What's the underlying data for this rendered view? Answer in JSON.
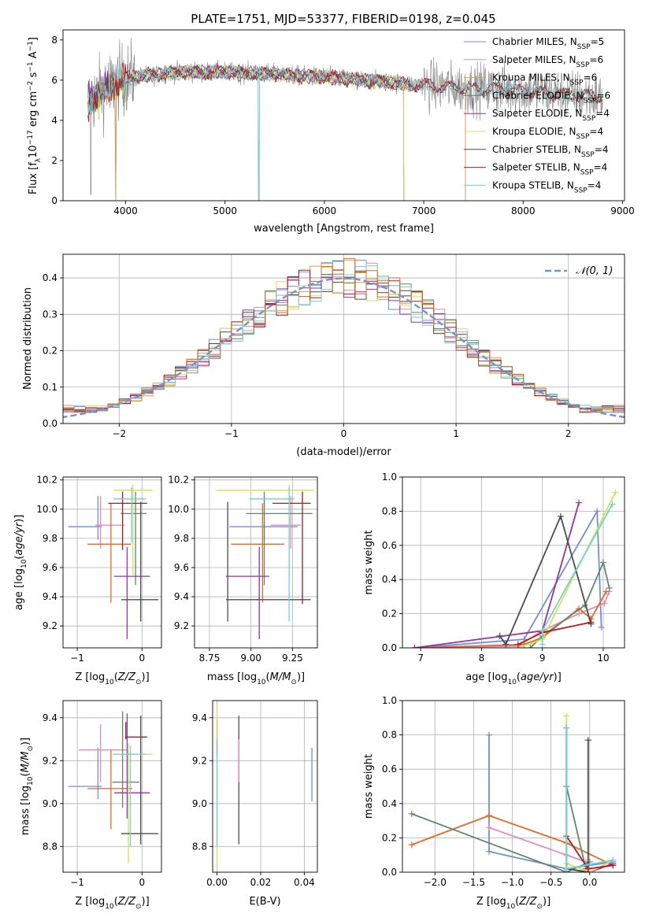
{
  "figure_title": "PLATE=1751, MJD=53377, FIBERID=0198, z=0.045",
  "colors": {
    "Chabrier MILES": "#6f8fd8",
    "Salpeter MILES": "#e98ab4",
    "Kroupa MILES": "#d2a24a",
    "Chabrier ELODIE": "#5f8a67",
    "Salpeter ELODIE": "#9a2db0",
    "Kroupa ELODIE": "#d9e052",
    "Chabrier STELIB": "#4c4c4c",
    "Salpeter STELIB": "#b11b1b",
    "Kroupa STELIB": "#6fd1d8",
    "orange": "#e46a24",
    "data": "#808080",
    "normal": "#6e94dc"
  },
  "chart_data": [
    {
      "type": "line",
      "title": "PLATE=1751, MJD=53377, FIBERID=0198, z=0.045",
      "xlabel": "wavelength [Angstrom, rest frame]",
      "ylabel": "Flux [fλ10⁻¹⁷ erg cm⁻² s⁻¹ A⁻¹]",
      "xlim": [
        3370,
        9020
      ],
      "ylim": [
        0,
        8.5
      ],
      "xticks": [
        4000,
        5000,
        6000,
        7000,
        8000,
        9000
      ],
      "yticks": [
        0,
        2,
        4,
        6,
        8
      ],
      "legend_position": "top-right",
      "legend": [
        {
          "label": "Chabrier MILES, N",
          "sub": "SSP",
          "suffix": "=5"
        },
        {
          "label": "Salpeter MILES, N",
          "sub": "SSP",
          "suffix": "=6"
        },
        {
          "label": "Kroupa MILES, N",
          "sub": "SSP",
          "suffix": "=6"
        },
        {
          "label": "Chabrier ELODIE, N",
          "sub": "SSP",
          "suffix": "=6"
        },
        {
          "label": "Salpeter ELODIE, N",
          "sub": "SSP",
          "suffix": "=4"
        },
        {
          "label": "Kroupa ELODIE, N",
          "sub": "SSP",
          "suffix": "=4"
        },
        {
          "label": "Chabrier STELIB, N",
          "sub": "SSP",
          "suffix": "=4"
        },
        {
          "label": "Salpeter STELIB, N",
          "sub": "SSP",
          "suffix": "=4"
        },
        {
          "label": "Kroupa STELIB, N",
          "sub": "SSP",
          "suffix": "=4"
        }
      ],
      "continuum": [
        [
          3620,
          4.9
        ],
        [
          3800,
          5.6
        ],
        [
          4000,
          6.1
        ],
        [
          4500,
          6.4
        ],
        [
          5000,
          6.4
        ],
        [
          5500,
          6.3
        ],
        [
          6000,
          6.15
        ],
        [
          6500,
          5.95
        ],
        [
          7000,
          5.75
        ],
        [
          7400,
          5.6
        ],
        [
          7800,
          5.55
        ],
        [
          8300,
          5.35
        ],
        [
          8800,
          5.15
        ]
      ],
      "model_ranges": {
        "Chabrier MILES": [
          3620,
          7420
        ],
        "Salpeter MILES": [
          3620,
          7420
        ],
        "Kroupa MILES": [
          3620,
          7420
        ],
        "Chabrier ELODIE": [
          3620,
          6800
        ],
        "Salpeter ELODIE": [
          3620,
          6800
        ],
        "Kroupa ELODIE": [
          3620,
          6800
        ],
        "Chabrier STELIB": [
          3620,
          8800
        ],
        "Salpeter STELIB": [
          3620,
          8800
        ],
        "Kroupa STELIB": [
          3620,
          8800
        ]
      }
    },
    {
      "type": "histogram",
      "xlabel": "(data-model)/error",
      "ylabel": "Normed distribution",
      "xlim": [
        -2.5,
        2.5
      ],
      "ylim": [
        0,
        0.465
      ],
      "xticks": [
        -2,
        -1,
        0,
        1,
        2
      ],
      "yticks": [
        0.0,
        0.1,
        0.2,
        0.3,
        0.4
      ],
      "legend": "𝒩(0, 1)",
      "bin_width": 0.1,
      "reference_curve": "normal pdf, mean 0, sigma 1"
    },
    {
      "type": "errorbar",
      "xlabel": "Z [log₁₀(Z/Z⊙)]",
      "ylabel": "age  [log₁₀(age/yr)]",
      "xlim": [
        -1.22,
        0.3
      ],
      "ylim": [
        9.05,
        10.22
      ],
      "xticks": [
        -1,
        0
      ],
      "yticks": [
        9.2,
        9.4,
        9.6,
        9.8,
        10.0,
        10.2
      ],
      "points": [
        {
          "model": "Chabrier MILES",
          "x": -0.68,
          "xlo": -1.14,
          "xhi": -0.62,
          "y": 9.88,
          "ylo": 9.79,
          "yhi": 10.09
        },
        {
          "model": "Salpeter MILES",
          "x": -0.64,
          "xlo": -0.72,
          "xhi": -0.27,
          "y": 9.89,
          "ylo": 9.73,
          "yhi": 10.09
        },
        {
          "model": "orange",
          "x": -0.48,
          "xlo": -0.84,
          "xhi": -0.17,
          "y": 9.76,
          "ylo": 9.36,
          "yhi": 10.04
        },
        {
          "model": "Chabrier ELODIE",
          "x": -0.1,
          "xlo": -0.33,
          "xhi": 0.07,
          "y": 9.97,
          "ylo": 9.48,
          "yhi": 10.12
        },
        {
          "model": "Salpeter ELODIE",
          "x": -0.23,
          "xlo": -0.43,
          "xhi": 0.12,
          "y": 9.54,
          "ylo": 9.11,
          "yhi": 9.74
        },
        {
          "model": "Kroupa ELODIE",
          "x": -0.14,
          "xlo": -0.43,
          "xhi": 0.16,
          "y": 10.13,
          "ylo": 9.54,
          "yhi": 10.17
        },
        {
          "model": "Chabrier STELIB",
          "x": -0.02,
          "xlo": -0.32,
          "xhi": 0.25,
          "y": 9.38,
          "ylo": 9.23,
          "yhi": 10.05
        },
        {
          "model": "Salpeter STELIB",
          "x": -0.3,
          "xlo": -0.52,
          "xhi": 0.08,
          "y": 10.04,
          "ylo": 9.72,
          "yhi": 10.12
        },
        {
          "model": "Kroupa STELIB",
          "x": -0.16,
          "xlo": -0.44,
          "xhi": 0.06,
          "y": 10.07,
          "ylo": 9.77,
          "yhi": 10.15
        }
      ]
    },
    {
      "type": "errorbar",
      "xlabel": "mass [log₁₀(M/M⊙)]",
      "ylabel": "",
      "xlim": [
        8.66,
        9.4
      ],
      "ylim": [
        9.05,
        10.22
      ],
      "xticks": [
        8.75,
        9.0,
        9.25
      ],
      "yticks": [
        9.2,
        9.4,
        9.6,
        9.8,
        10.0,
        10.2
      ],
      "points": [
        {
          "model": "Chabrier MILES",
          "x": 9.08,
          "xlo": 8.87,
          "xhi": 9.28,
          "y": 9.88,
          "ylo": 9.79,
          "yhi": 10.09
        },
        {
          "model": "Salpeter MILES",
          "x": 9.24,
          "xlo": 9.12,
          "xhi": 9.3,
          "y": 9.89,
          "ylo": 9.73,
          "yhi": 10.09
        },
        {
          "model": "orange",
          "x": 9.07,
          "xlo": 8.88,
          "xhi": 9.2,
          "y": 9.76,
          "ylo": 9.36,
          "yhi": 10.04
        },
        {
          "model": "Chabrier ELODIE",
          "x": 9.08,
          "xlo": 8.97,
          "xhi": 9.37,
          "y": 9.97,
          "ylo": 9.48,
          "yhi": 10.12
        },
        {
          "model": "Salpeter ELODIE",
          "x": 9.05,
          "xlo": 8.85,
          "xhi": 9.11,
          "y": 9.54,
          "ylo": 9.11,
          "yhi": 9.74
        },
        {
          "model": "Kroupa ELODIE",
          "x": 9.23,
          "xlo": 8.79,
          "xhi": 9.38,
          "y": 10.13,
          "ylo": 9.54,
          "yhi": 10.17
        },
        {
          "model": "Chabrier STELIB",
          "x": 8.86,
          "xlo": 8.85,
          "xhi": 9.36,
          "y": 9.38,
          "ylo": 9.23,
          "yhi": 10.05
        },
        {
          "model": "Salpeter STELIB",
          "x": 9.31,
          "xlo": 9.13,
          "xhi": 9.36,
          "y": 10.04,
          "ylo": 9.35,
          "yhi": 10.12
        },
        {
          "model": "Kroupa STELIB",
          "x": 9.23,
          "xlo": 8.99,
          "xhi": 9.26,
          "y": 10.07,
          "ylo": 9.23,
          "yhi": 10.15
        }
      ]
    },
    {
      "type": "line",
      "xlabel": "age  [log₁₀(age/yr)]",
      "ylabel": "mass weight",
      "xlim": [
        6.7,
        10.35
      ],
      "ylim": [
        0,
        1.0
      ],
      "xticks": [
        7,
        8,
        9,
        10
      ],
      "yticks": [
        0.0,
        0.2,
        0.4,
        0.6,
        0.8,
        1.0
      ],
      "series": [
        {
          "model": "Chabrier MILES",
          "x": [
            6.9,
            8.7,
            9.9,
            9.97
          ],
          "y": [
            0.0,
            0.05,
            0.8,
            0.12
          ]
        },
        {
          "model": "Salpeter MILES",
          "x": [
            6.9,
            8.6,
            9.0,
            9.6,
            10.02,
            10.1
          ],
          "y": [
            0.0,
            0.01,
            0.1,
            0.2,
            0.26,
            0.33
          ]
        },
        {
          "model": "orange",
          "x": [
            6.9,
            8.7,
            9.0,
            9.6,
            9.8,
            10.05
          ],
          "y": [
            0.0,
            0.02,
            0.06,
            0.23,
            0.17,
            0.33
          ]
        },
        {
          "model": "Chabrier ELODIE",
          "x": [
            8.8,
            9.0,
            9.7,
            10.0,
            10.1
          ],
          "y": [
            0.0,
            0.07,
            0.25,
            0.5,
            0.35
          ]
        },
        {
          "model": "Salpeter ELODIE",
          "x": [
            6.9,
            9.0,
            9.6
          ],
          "y": [
            0.0,
            0.1,
            0.85
          ]
        },
        {
          "model": "Kroupa ELODIE",
          "x": [
            8.6,
            9.0,
            10.2
          ],
          "y": [
            0.0,
            0.05,
            0.91
          ]
        },
        {
          "model": "Chabrier STELIB",
          "x": [
            8.3,
            8.4,
            9.3,
            9.8
          ],
          "y": [
            0.07,
            0.02,
            0.77,
            0.14
          ]
        },
        {
          "model": "Salpeter STELIB",
          "x": [
            8.6,
            9.0,
            9.8
          ],
          "y": [
            0.02,
            0.09,
            0.15
          ]
        },
        {
          "model": "Kroupa STELIB",
          "x": [
            9.0,
            9.0,
            10.15
          ],
          "y": [
            0.02,
            0.1,
            0.84
          ]
        }
      ]
    },
    {
      "type": "errorbar",
      "xlabel": "Z [log₁₀(Z/Z⊙)]",
      "ylabel": "mass [log₁₀(M/M⊙)]",
      "xlim": [
        -1.22,
        0.3
      ],
      "ylim": [
        8.68,
        9.48
      ],
      "xticks": [
        -1,
        0
      ],
      "yticks": [
        8.8,
        9.0,
        9.2,
        9.4
      ],
      "points": [
        {
          "model": "Chabrier MILES",
          "x": -0.68,
          "xlo": -1.14,
          "xhi": -0.62,
          "y": 9.08,
          "ylo": 9.02,
          "yhi": 9.26
        },
        {
          "model": "Salpeter MILES",
          "x": -0.64,
          "xlo": -0.98,
          "xhi": -0.23,
          "y": 9.25,
          "ylo": 9.1,
          "yhi": 9.37
        },
        {
          "model": "orange",
          "x": -0.48,
          "xlo": -0.84,
          "xhi": -0.15,
          "y": 9.07,
          "ylo": 8.88,
          "yhi": 9.25
        },
        {
          "model": "Chabrier ELODIE",
          "x": -0.3,
          "xlo": -0.46,
          "xhi": -0.04,
          "y": 9.1,
          "ylo": 8.98,
          "yhi": 9.43
        },
        {
          "model": "Salpeter ELODIE",
          "x": -0.23,
          "xlo": -0.43,
          "xhi": 0.12,
          "y": 9.05,
          "ylo": 8.93,
          "yhi": 9.42
        },
        {
          "model": "Kroupa ELODIE",
          "x": -0.21,
          "xlo": -0.46,
          "xhi": 0.16,
          "y": 9.23,
          "ylo": 8.72,
          "yhi": 9.28
        },
        {
          "model": "Chabrier STELIB",
          "x": -0.02,
          "xlo": -0.32,
          "xhi": 0.25,
          "y": 8.86,
          "ylo": 8.81,
          "yhi": 9.41
        },
        {
          "model": "Salpeter STELIB",
          "x": -0.25,
          "xlo": -0.26,
          "xhi": 0.08,
          "y": 9.31,
          "ylo": 9.3,
          "yhi": 9.38
        },
        {
          "model": "Kroupa STELIB",
          "x": -0.18,
          "xlo": -0.44,
          "xhi": 0.06,
          "y": 9.23,
          "ylo": 8.8,
          "yhi": 9.27
        }
      ]
    },
    {
      "type": "errorbar",
      "xlabel": "E(B-V)",
      "ylabel": "",
      "xlim": [
        -0.002,
        0.046
      ],
      "ylim": [
        8.68,
        9.48
      ],
      "xticks": [
        0.0,
        0.02,
        0.04
      ],
      "yticks": [
        8.8,
        9.0,
        9.2,
        9.4
      ],
      "points": [
        {
          "model": "Chabrier MILES",
          "x": 0.0435,
          "y": 9.1,
          "ylo": 9.01,
          "yhi": 9.26
        },
        {
          "model": "Salpeter STELIB",
          "x": 0.0,
          "y": 9.3,
          "ylo": 9.22,
          "yhi": 9.39
        },
        {
          "model": "Kroupa ELODIE",
          "x": 0.0,
          "y": 9.2,
          "ylo": 8.7,
          "yhi": 9.45
        },
        {
          "model": "Kroupa STELIB",
          "x": 0.0,
          "y": 9.1,
          "ylo": 8.8,
          "yhi": 9.3
        },
        {
          "model": "Chabrier STELIB",
          "x": 0.01,
          "y": 9.1,
          "ylo": 8.81,
          "yhi": 9.41
        },
        {
          "model": "Salpeter MILES",
          "x": 0.01,
          "y": 9.2,
          "ylo": 9.1,
          "yhi": 9.3
        }
      ]
    },
    {
      "type": "line",
      "xlabel": "Z [log₁₀(Z/Z⊙)]",
      "ylabel": "mass weight",
      "xlim": [
        -2.42,
        0.45
      ],
      "ylim": [
        0,
        1.0
      ],
      "xticks": [
        -2.0,
        -1.5,
        -1.0,
        -0.5,
        0.0
      ],
      "yticks": [
        0.0,
        0.2,
        0.4,
        0.6,
        0.8,
        1.0
      ],
      "series": [
        {
          "model": "Chabrier MILES",
          "x": [
            -1.3,
            -1.3,
            -0.3,
            0.3
          ],
          "y": [
            0.8,
            0.12,
            0.02,
            0.06
          ]
        },
        {
          "model": "Salpeter MILES",
          "x": [
            -1.3,
            -0.3,
            -0.05
          ],
          "y": [
            0.26,
            0.1,
            0.06
          ]
        },
        {
          "model": "orange",
          "x": [
            -2.3,
            -1.3,
            -0.3,
            0.3
          ],
          "y": [
            0.16,
            0.33,
            0.17,
            0.04
          ]
        },
        {
          "model": "Chabrier ELODIE",
          "x": [
            -2.3,
            -0.3,
            0.0
          ],
          "y": [
            0.34,
            0.0,
            0.06
          ]
        },
        {
          "model": "Chabrier ELODIE",
          "x": [
            -0.3,
            -0.05
          ],
          "y": [
            0.5,
            0.02
          ]
        },
        {
          "model": "Salpeter ELODIE",
          "x": [
            -0.3,
            0.0,
            0.3
          ],
          "y": [
            0.02,
            0.0,
            0.05
          ]
        },
        {
          "model": "Kroupa ELODIE",
          "x": [
            -0.3,
            -0.3,
            0.0,
            0.3
          ],
          "y": [
            0.91,
            0.05,
            0.0,
            0.07
          ]
        },
        {
          "model": "Chabrier STELIB",
          "x": [
            -0.3,
            -0.3,
            -0.02,
            -0.02
          ],
          "y": [
            0.84,
            0.02,
            0.0,
            0.77
          ]
        },
        {
          "model": "Salpeter STELIB",
          "x": [
            -0.3,
            -0.02,
            0.3
          ],
          "y": [
            0.21,
            0.02,
            0.04
          ]
        },
        {
          "model": "Kroupa STELIB",
          "x": [
            -0.3,
            -0.3,
            0.3
          ],
          "y": [
            0.84,
            0.02,
            0.07
          ]
        }
      ]
    }
  ]
}
